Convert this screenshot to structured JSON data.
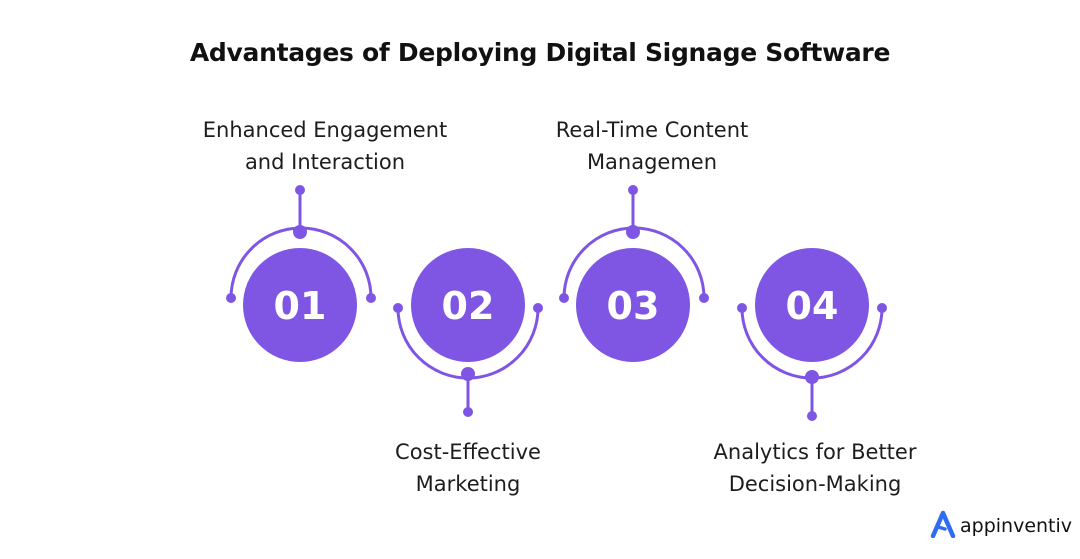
{
  "title": "Advantages of Deploying Digital Signage Software",
  "accent_color": "#7f56e3",
  "steps": [
    {
      "number": "01",
      "label_line1": "Enhanced Engagement",
      "label_line2": "and Interaction"
    },
    {
      "number": "02",
      "label_line1": "Cost-Effective",
      "label_line2": "Marketing"
    },
    {
      "number": "03",
      "label_line1": "Real-Time Content",
      "label_line2": "Managemen"
    },
    {
      "number": "04",
      "label_line1": "Analytics for Better",
      "label_line2": "Decision-Making"
    }
  ],
  "brand": {
    "name": "appinventiv",
    "icon": "appinventiv-logo-icon",
    "color": "#2f6cf5"
  }
}
